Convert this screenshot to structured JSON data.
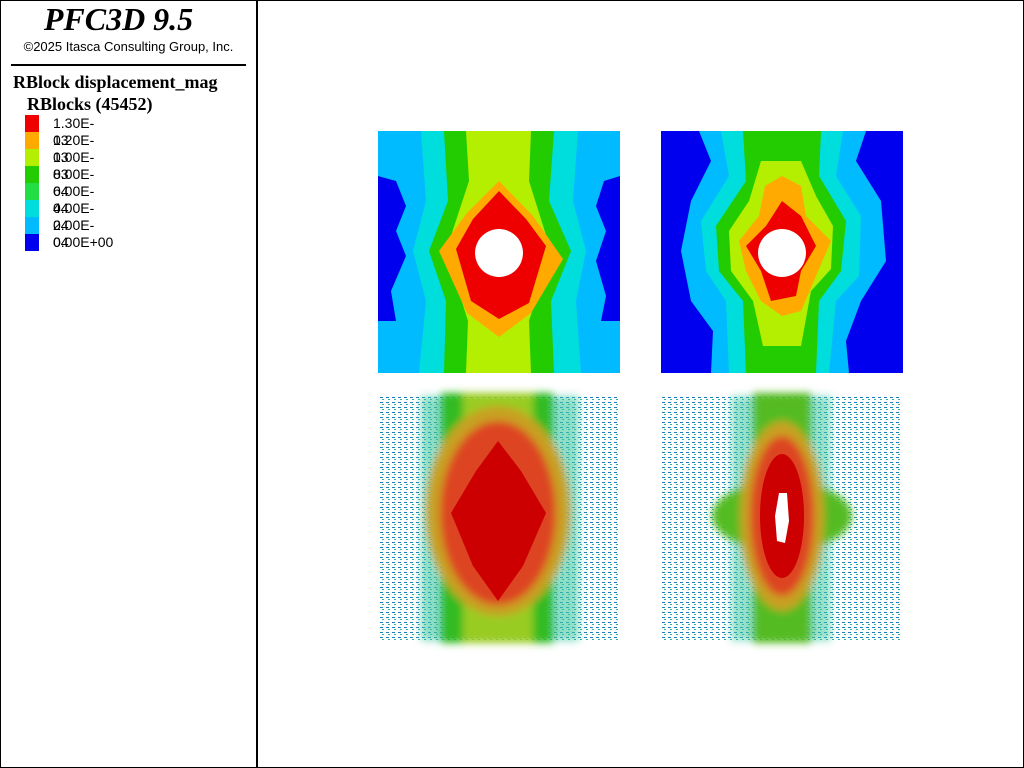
{
  "header": {
    "title": "PFC3D 9.5",
    "copyright": "©2025 Itasca Consulting Group, Inc."
  },
  "plot": {
    "name": "RBlock displacement_mag",
    "group": "RBlocks (45452)"
  },
  "legend": {
    "items": [
      {
        "label": "1.30E-03"
      },
      {
        "label": "1.20E-03"
      },
      {
        "label": "1.00E-03"
      },
      {
        "label": "8.00E-04"
      },
      {
        "label": "6.00E-04"
      },
      {
        "label": "4.00E-04"
      },
      {
        "label": "2.00E-04"
      },
      {
        "label": "0.00E+00"
      }
    ]
  }
}
